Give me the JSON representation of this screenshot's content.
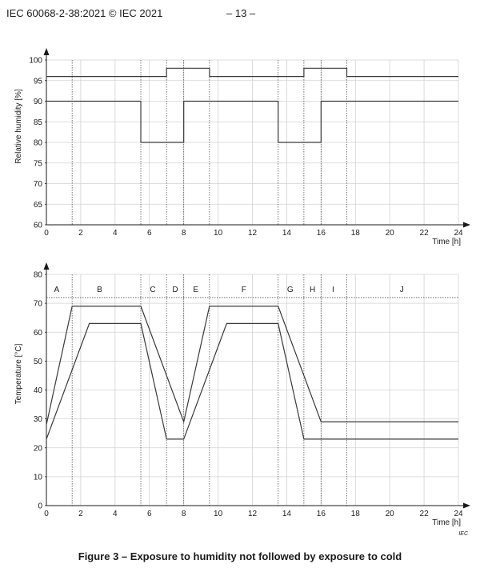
{
  "header": {
    "text": "IEC 60068-2-38:2021 © IEC 2021",
    "page": "– 13 –"
  },
  "caption": "Figure 3 – Exposure to humidity not followed by exposure to cold",
  "iec_mark": "IEC",
  "chart_data": [
    {
      "type": "line",
      "title": "",
      "ylabel": "Relative humidity [%]",
      "xlabel": "Time [h]",
      "xlim": [
        0,
        24
      ],
      "ylim": [
        60,
        100
      ],
      "xticks": [
        0,
        2,
        4,
        6,
        8,
        10,
        12,
        14,
        16,
        18,
        20,
        22,
        24
      ],
      "yticks": [
        60,
        65,
        70,
        75,
        80,
        85,
        90,
        95,
        100
      ],
      "grid": true,
      "vlines": [
        1.5,
        5.5,
        7,
        8,
        9.5,
        13.5,
        15,
        16,
        17.5
      ],
      "series": [
        {
          "x": [
            0,
            7,
            7,
            9.5,
            9.5,
            15,
            15,
            17.5,
            17.5,
            24
          ],
          "y": [
            96,
            96,
            98,
            98,
            96,
            96,
            98,
            98,
            96,
            96
          ]
        },
        {
          "x": [
            0,
            5.5,
            5.5,
            8,
            8,
            13.5,
            13.5,
            16,
            16,
            24
          ],
          "y": [
            90,
            90,
            80,
            80,
            90,
            90,
            80,
            80,
            90,
            90
          ]
        }
      ]
    },
    {
      "type": "line",
      "title": "",
      "ylabel": "Temperature [°C]",
      "xlabel": "Time [h]",
      "xlim": [
        0,
        24
      ],
      "ylim": [
        0,
        80
      ],
      "xticks": [
        0,
        2,
        4,
        6,
        8,
        10,
        12,
        14,
        16,
        18,
        20,
        22,
        24
      ],
      "yticks": [
        0,
        10,
        20,
        30,
        40,
        50,
        60,
        70,
        80
      ],
      "grid": true,
      "vlines": [
        1.5,
        5.5,
        7,
        8,
        9.5,
        13.5,
        15,
        16,
        17.5
      ],
      "reference_line": 72,
      "segments": [
        {
          "label": "A",
          "x": 0.6
        },
        {
          "label": "B",
          "x": 3.1
        },
        {
          "label": "C",
          "x": 6.2
        },
        {
          "label": "D",
          "x": 7.5
        },
        {
          "label": "E",
          "x": 8.7
        },
        {
          "label": "F",
          "x": 11.5
        },
        {
          "label": "G",
          "x": 14.2
        },
        {
          "label": "H",
          "x": 15.5
        },
        {
          "label": "I",
          "x": 16.7
        },
        {
          "label": "J",
          "x": 20.7
        }
      ],
      "series": [
        {
          "x": [
            0,
            1.5,
            5.5,
            8,
            9.5,
            13.5,
            16,
            24
          ],
          "y": [
            28,
            69,
            69,
            29,
            69,
            69,
            29,
            29
          ]
        },
        {
          "x": [
            0,
            2.5,
            5.5,
            7,
            8,
            10.5,
            13.5,
            15,
            24
          ],
          "y": [
            23,
            63,
            63,
            23,
            23,
            63,
            63,
            23,
            23
          ]
        }
      ]
    }
  ]
}
